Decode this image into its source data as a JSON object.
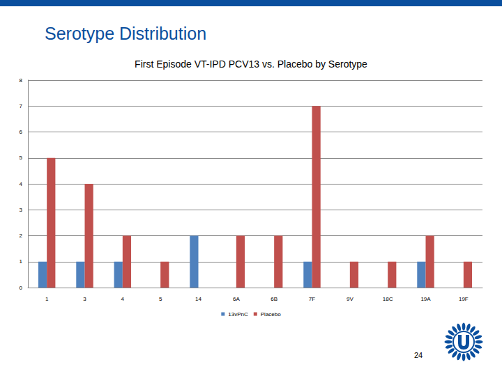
{
  "slide": {
    "heading": "Serotype Distribution",
    "page_number": "24"
  },
  "chart_data": {
    "type": "bar",
    "title": "First Episode VT-IPD PCV13 vs. Placebo by Serotype",
    "categories": [
      "1",
      "3",
      "4",
      "5",
      "14",
      "6A",
      "6B",
      "7F",
      "9V",
      "18C",
      "19A",
      "19F"
    ],
    "series": [
      {
        "name": "13vPnC",
        "color": "#4f81bd",
        "values": [
          1,
          1,
          1,
          0,
          2,
          0,
          0,
          1,
          0,
          0,
          1,
          0
        ]
      },
      {
        "name": "Placebo",
        "color": "#c0504d",
        "values": [
          5,
          4,
          2,
          1,
          0,
          2,
          2,
          7,
          1,
          1,
          2,
          1
        ]
      }
    ],
    "ylim": [
      0,
      8
    ],
    "yticks": [
      0,
      1,
      2,
      3,
      4,
      5,
      6,
      7,
      8
    ],
    "grid": true,
    "legend": "bottom"
  }
}
